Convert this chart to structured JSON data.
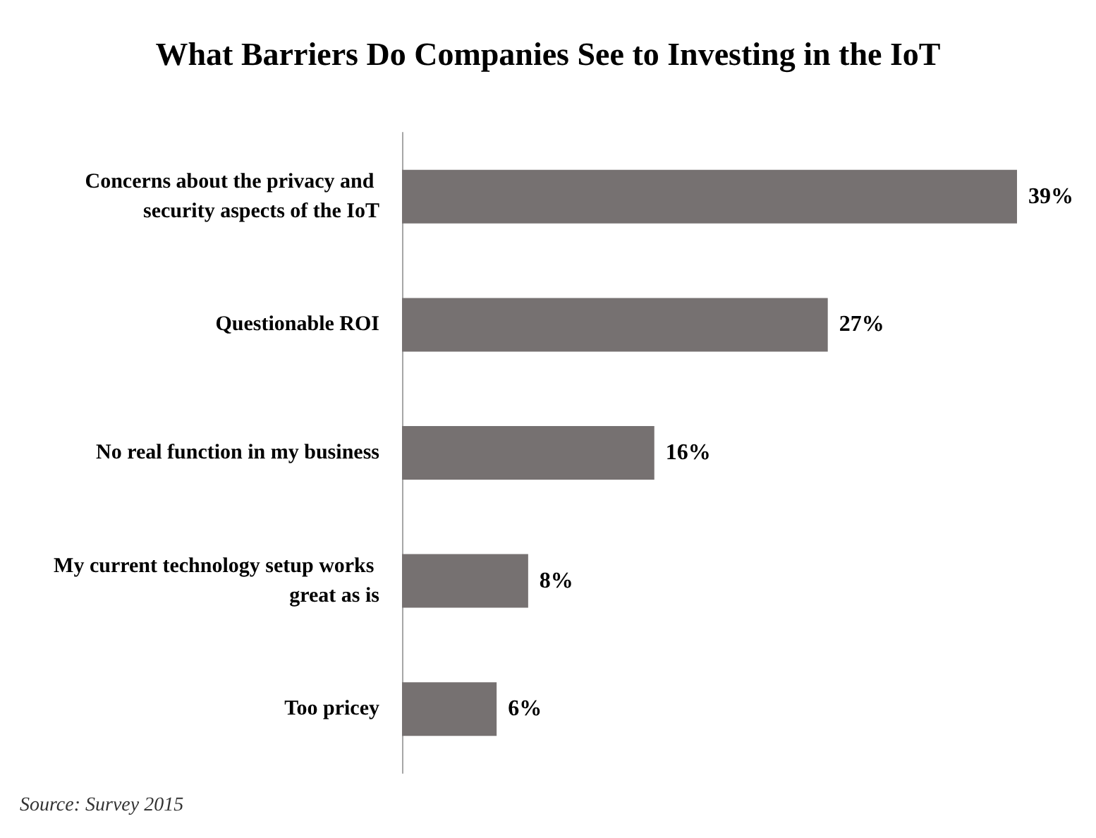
{
  "chart_data": {
    "type": "bar",
    "orientation": "horizontal",
    "title": "What Barriers Do Companies See to Investing in the IoT",
    "categories": [
      "Concerns about the privacy and security aspects of the IoT",
      "Questionable ROI",
      "No real function in my business",
      "My current technology setup works great as is",
      "Too pricey"
    ],
    "values": [
      39,
      27,
      16,
      8,
      6
    ],
    "value_labels": [
      "39%",
      "27%",
      "16%",
      "8%",
      "6%"
    ],
    "color": "#767171",
    "annotations": [
      "Source: Survey 2015"
    ]
  }
}
